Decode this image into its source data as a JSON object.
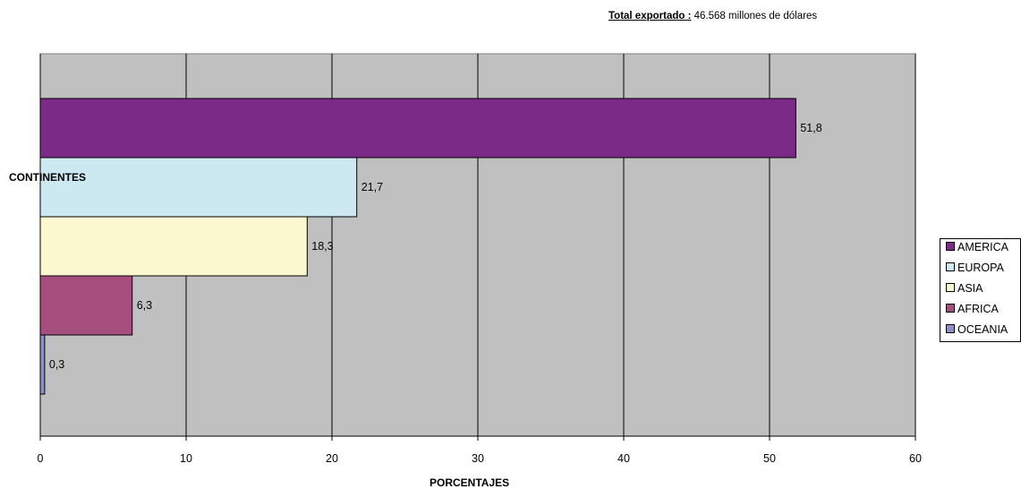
{
  "header": {
    "label": "Total exportado :",
    "value": "46.568 millones de dólares"
  },
  "chart_data": {
    "type": "bar",
    "orientation": "horizontal",
    "ylabel": "CONTINENTES",
    "xlabel": "PORCENTAJES",
    "xlim": [
      0,
      60
    ],
    "x_ticks": [
      0,
      10,
      20,
      30,
      40,
      50,
      60
    ],
    "grid": true,
    "legend_position": "right",
    "categories": [
      "AMERICA",
      "EUROPA",
      "ASIA",
      "AFRICA",
      "OCEANIA"
    ],
    "values": [
      51.8,
      21.7,
      18.3,
      6.3,
      0.3
    ],
    "value_labels": [
      "51,8",
      "21,7",
      "18,3",
      "6,3",
      "0,3"
    ],
    "colors": [
      "#7b2a87",
      "#cce9f2",
      "#fbf8cf",
      "#a64f7f",
      "#8f8fc8"
    ],
    "background_color": "#c0c0c0"
  }
}
